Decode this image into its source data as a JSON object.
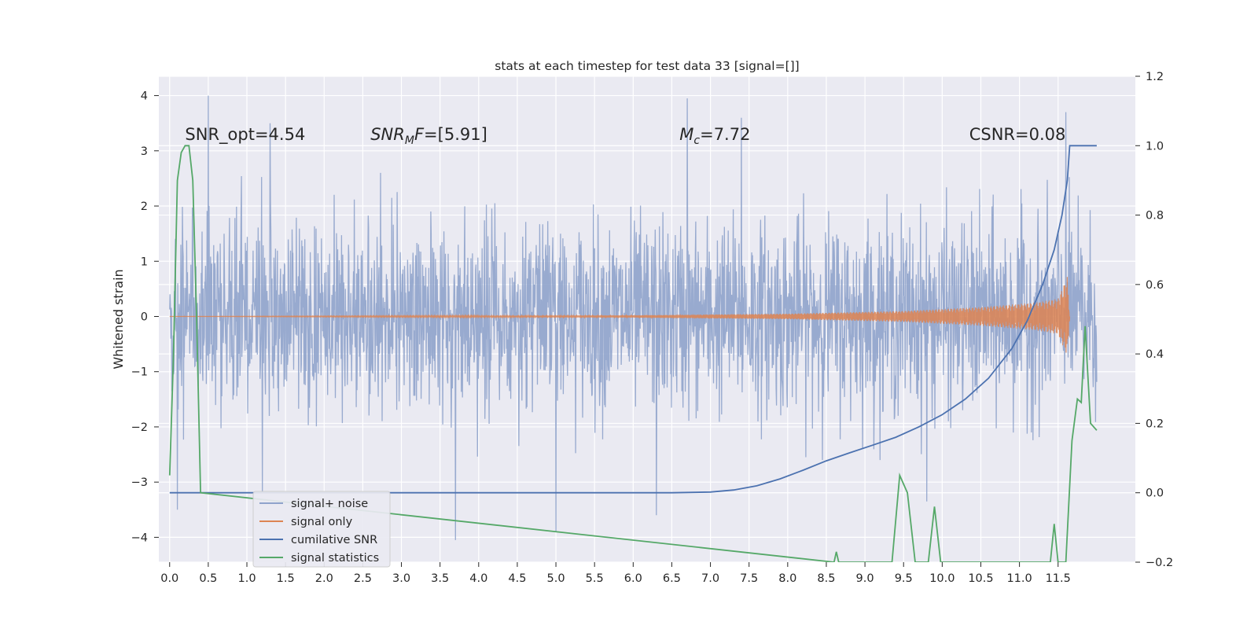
{
  "chart_data": {
    "type": "line",
    "title": "stats at each timestep for test data 33 [signal=[]]",
    "ylabel": "Whitened strain",
    "xlabel": "",
    "xlim": [
      -0.14,
      12.5
    ],
    "ylim": [
      -4.45,
      4.35
    ],
    "y2lim": [
      -0.2,
      1.2
    ],
    "xticks": [
      "0.0",
      "0.5",
      "1.0",
      "1.5",
      "2.0",
      "2.5",
      "3.0",
      "3.5",
      "4.0",
      "4.5",
      "5.0",
      "5.5",
      "6.0",
      "6.5",
      "7.0",
      "7.5",
      "8.0",
      "8.5",
      "9.0",
      "9.5",
      "10.0",
      "10.5",
      "11.0",
      "11.5"
    ],
    "yticks": [
      "4",
      "3",
      "2",
      "1",
      "0",
      "−1",
      "−2",
      "−3",
      "−4"
    ],
    "y2ticks": [
      "1.2",
      "1.0",
      "0.8",
      "0.6",
      "0.4",
      "0.2",
      "0.0",
      "−0.2"
    ],
    "grid": true,
    "legend_placement": "lower-left",
    "colors": {
      "signal_noise": "#8fa3cb",
      "signal_only": "#dd8452",
      "cumulative_snr": "#4c72b0",
      "signal_statistics": "#55a868",
      "axes_bg": "#eaeaf2",
      "grid": "#ffffff"
    },
    "annotations": [
      {
        "text": "SNR_opt=4.54",
        "x": 0.2,
        "y": 3.2
      },
      {
        "text": "SNR_M F=[5.91]",
        "x": 2.6,
        "y": 3.2
      },
      {
        "text": "M_c=7.72",
        "x": 6.6,
        "y": 3.2
      },
      {
        "text": "CSNR=0.08",
        "x": 10.35,
        "y": 3.2
      }
    ],
    "series": [
      {
        "name": "signal+ noise",
        "axis": "left",
        "kind": "noise-band",
        "x_range": [
          0.0,
          12.0
        ],
        "typical_envelope": [
          -2.0,
          2.0
        ],
        "peak_values": [
          [
            0.5,
            4.0
          ],
          [
            6.7,
            3.95
          ],
          [
            7.4,
            3.6
          ],
          [
            1.3,
            3.5
          ],
          [
            11.6,
            3.7
          ],
          [
            3.7,
            -4.05
          ],
          [
            5.0,
            -3.9
          ],
          [
            6.3,
            -3.6
          ],
          [
            0.1,
            -3.5
          ],
          [
            1.2,
            -3.2
          ],
          [
            9.8,
            -3.35
          ]
        ]
      },
      {
        "name": "signal only",
        "axis": "left",
        "kind": "chirp",
        "x_range": [
          0.0,
          11.65
        ],
        "amplitude_points": [
          [
            0.0,
            0.0
          ],
          [
            6.0,
            0.02
          ],
          [
            8.0,
            0.05
          ],
          [
            9.5,
            0.1
          ],
          [
            10.5,
            0.17
          ],
          [
            11.2,
            0.25
          ],
          [
            11.5,
            0.32
          ],
          [
            11.62,
            0.72
          ],
          [
            11.65,
            0.0
          ]
        ]
      },
      {
        "name": "cumilative SNR",
        "axis": "right",
        "x": [
          0.0,
          1.0,
          2.0,
          3.0,
          4.0,
          5.0,
          6.0,
          6.5,
          7.0,
          7.3,
          7.6,
          7.9,
          8.2,
          8.5,
          8.8,
          9.1,
          9.4,
          9.7,
          10.0,
          10.3,
          10.6,
          10.9,
          11.1,
          11.3,
          11.45,
          11.55,
          11.62,
          11.65,
          12.0
        ],
        "values": [
          0.0,
          0.0,
          0.0,
          0.0,
          0.0,
          0.0,
          0.0,
          0.0,
          0.002,
          0.008,
          0.02,
          0.04,
          0.065,
          0.092,
          0.115,
          0.137,
          0.16,
          0.19,
          0.225,
          0.27,
          0.33,
          0.415,
          0.495,
          0.6,
          0.7,
          0.8,
          0.9,
          1.0,
          1.0
        ]
      },
      {
        "name": "signal statistics",
        "axis": "right",
        "x": [
          0.0,
          0.05,
          0.1,
          0.15,
          0.2,
          0.25,
          0.3,
          0.35,
          0.4,
          8.6,
          8.63,
          8.66,
          9.35,
          9.45,
          9.55,
          9.65,
          9.82,
          9.9,
          9.98,
          11.4,
          11.45,
          11.5,
          11.6,
          11.68,
          11.75,
          11.8,
          11.85,
          11.92,
          12.0
        ],
        "values": [
          0.05,
          0.4,
          0.9,
          0.98,
          1.0,
          1.0,
          0.9,
          0.5,
          0.0,
          -0.2,
          -0.17,
          -0.2,
          -0.2,
          0.05,
          0.0,
          -0.2,
          -0.2,
          -0.04,
          -0.2,
          -0.2,
          -0.09,
          -0.2,
          -0.2,
          0.15,
          0.27,
          0.26,
          0.48,
          0.2,
          0.18
        ]
      }
    ]
  }
}
